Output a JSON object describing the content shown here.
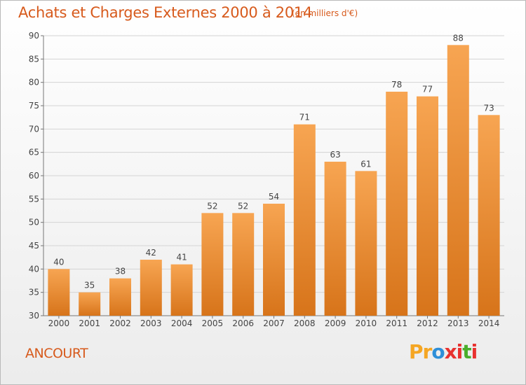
{
  "header": {
    "title": "Achats et Charges Externes 2000 à 2014",
    "unit": "(en milliers d'€)"
  },
  "footer": {
    "commune": "ANCOURT",
    "logo": {
      "letters": [
        "P",
        "r",
        "o",
        "x",
        "i",
        "t",
        "i"
      ],
      "colors": [
        "#f5a623",
        "#f5a623",
        "#2e8fd8",
        "#e8312f",
        "#e8312f",
        "#4aae2c",
        "#e8312f"
      ]
    }
  },
  "colors": {
    "bar_top": "#f7a552",
    "bar_bottom": "#d7741a",
    "title": "#d75a1c",
    "grid": "#d4d4d4"
  },
  "chart_data": {
    "type": "bar",
    "title": "Achats et Charges Externes 2000 à 2014",
    "subtitle": "(en milliers d'€)",
    "categories": [
      "2000",
      "2001",
      "2002",
      "2003",
      "2004",
      "2005",
      "2006",
      "2007",
      "2008",
      "2009",
      "2010",
      "2011",
      "2012",
      "2013",
      "2014"
    ],
    "values": [
      40,
      35,
      38,
      42,
      41,
      52,
      52,
      54,
      71,
      63,
      61,
      78,
      77,
      88,
      73
    ],
    "ylim": [
      30,
      90
    ],
    "yticks": [
      30,
      35,
      40,
      45,
      50,
      55,
      60,
      65,
      70,
      75,
      80,
      85,
      90
    ],
    "grid": true
  }
}
